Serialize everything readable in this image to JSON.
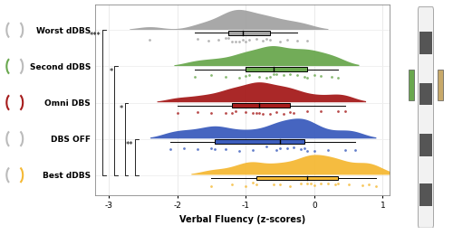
{
  "chart_data": {
    "type": "raincloud",
    "orientation": "horizontal",
    "x_label": "Verbal Fluency (z-scores)",
    "xlim": [
      -3.2,
      1.1
    ],
    "xticks": [
      -3,
      -2,
      -1,
      0,
      1
    ],
    "grid": true,
    "series": [
      {
        "name": "Worst dDBS",
        "color": "#a3a3a3",
        "values": [
          -2.4,
          -1.7,
          -1.55,
          -1.4,
          -1.3,
          -1.25,
          -1.2,
          -1.15,
          -1.1,
          -1.05,
          -1.0,
          -0.95,
          -0.85,
          -0.75,
          -0.7,
          -0.65,
          -0.5,
          -0.4,
          -0.25,
          -0.1
        ],
        "box": {
          "whisker_low": -1.75,
          "q1": -1.25,
          "median": -1.05,
          "q3": -0.65,
          "whisker_high": -0.25
        }
      },
      {
        "name": "Second dDBS",
        "color": "#6aa84f",
        "values": [
          -1.75,
          -1.5,
          -1.3,
          -1.1,
          -1.0,
          -0.95,
          -0.8,
          -0.7,
          -0.65,
          -0.6,
          -0.55,
          -0.45,
          -0.35,
          -0.25,
          -0.15,
          -0.1,
          0.0,
          0.1,
          0.25,
          0.35
        ],
        "box": {
          "whisker_low": -1.75,
          "q1": -1.0,
          "median": -0.6,
          "q3": -0.1,
          "whisker_high": 0.35
        }
      },
      {
        "name": "Omni DBS",
        "color": "#a61c1c",
        "values": [
          -2.0,
          -1.7,
          -1.5,
          -1.3,
          -1.2,
          -1.15,
          -1.0,
          -0.9,
          -0.85,
          -0.8,
          -0.75,
          -0.65,
          -0.55,
          -0.45,
          -0.35,
          -0.3,
          -0.1,
          0.1,
          0.35,
          0.45
        ],
        "box": {
          "whisker_low": -2.0,
          "q1": -1.2,
          "median": -0.8,
          "q3": -0.35,
          "whisker_high": 0.45
        }
      },
      {
        "name": "DBS OFF",
        "color": "#3c5dbd",
        "values": [
          -2.1,
          -1.9,
          -1.7,
          -1.5,
          -1.45,
          -1.3,
          -1.1,
          -0.9,
          -0.7,
          -0.55,
          -0.5,
          -0.4,
          -0.3,
          -0.2,
          -0.15,
          -0.1,
          0.0,
          0.2,
          0.45,
          0.6
        ],
        "box": {
          "whisker_low": -2.1,
          "q1": -1.45,
          "median": -0.5,
          "q3": -0.15,
          "whisker_high": 0.6
        }
      },
      {
        "name": "Best dDBS",
        "color": "#f5b935",
        "values": [
          -1.5,
          -1.2,
          -1.0,
          -0.9,
          -0.85,
          -0.6,
          -0.5,
          -0.35,
          -0.2,
          -0.1,
          -0.05,
          0.0,
          0.1,
          0.2,
          0.3,
          0.35,
          0.5,
          0.7,
          0.8,
          0.9
        ],
        "box": {
          "whisker_low": -1.5,
          "q1": -0.85,
          "median": -0.1,
          "q3": 0.35,
          "whisker_high": 0.9
        }
      }
    ],
    "annotations": [
      {
        "from": "Worst dDBS",
        "to": "Best dDBS",
        "label": "***"
      },
      {
        "from": "Second dDBS",
        "to": "Best dDBS",
        "label": "*"
      },
      {
        "from": "Omni DBS",
        "to": "Best dDBS",
        "label": "*"
      },
      {
        "from": "DBS OFF",
        "to": "Best dDBS",
        "label": "**"
      }
    ]
  }
}
